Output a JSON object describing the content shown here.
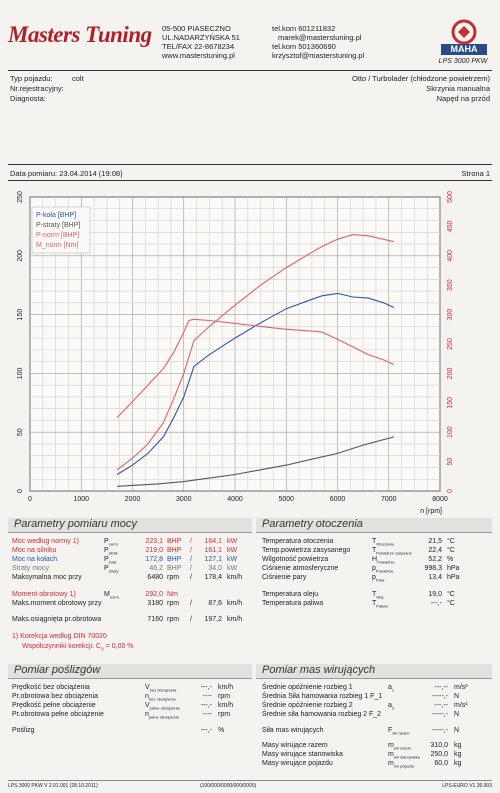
{
  "header": {
    "brand": "Masters Tuning",
    "address": [
      "05-500 PIASECZNO",
      "UL.NADARZYŃSKA 51",
      "TEL/FAX 22-8678234",
      "www.masterstuning.pl"
    ],
    "contacts": [
      "tel.kom 601211832",
      "marek@masterstuning.pl",
      "tel.kom 501360690",
      "krzysztof@masterstuning.pl"
    ],
    "maha_brand": "MAHA",
    "maha_model": "LPS 3000 PKW"
  },
  "vehicle": {
    "type_label": "Typ pojazdu:",
    "type_value": "colt",
    "reg_label": "Nr.rejestracyjny:",
    "reg_value": "",
    "diag_label": "Diagnosta:",
    "diag_value": "",
    "engine": "Otto / Turbolader (chłodzone powietrzem)",
    "gearbox": "Skrzynia manualna",
    "drive": "Napęd na przód"
  },
  "measurement": {
    "date_label": "Data pomiaru: 23.04.2014 (19:08)",
    "page_label": "Strona 1"
  },
  "chart_data": {
    "type": "line",
    "xlabel": "n [rpm]",
    "xlim": [
      0,
      8000
    ],
    "xticks": [
      0,
      1000,
      2000,
      3000,
      4000,
      5000,
      6000,
      7000,
      8000
    ],
    "ylim_left": [
      0,
      250
    ],
    "yticks_left": [
      0,
      50,
      100,
      150,
      200,
      250
    ],
    "ylim_right": [
      0,
      500
    ],
    "yticks_right": [
      0,
      50,
      100,
      150,
      200,
      250,
      300,
      350,
      400,
      450,
      500
    ],
    "grid": true,
    "legend": "top-left",
    "series": [
      {
        "name": "P-koła [BHP]",
        "axis": "left",
        "color": "#2c55a7",
        "x": [
          1700,
          2000,
          2300,
          2600,
          2800,
          3000,
          3200,
          3500,
          4000,
          4500,
          5000,
          5500,
          5700,
          6000,
          6300,
          6600,
          6900,
          7100
        ],
        "y": [
          14,
          22,
          32,
          46,
          62,
          80,
          106,
          116,
          130,
          143,
          155,
          163,
          166,
          168,
          165,
          164,
          160,
          156
        ]
      },
      {
        "name": "P-straty [BHP]",
        "axis": "left",
        "color": "#555555",
        "x": [
          1700,
          2500,
          3000,
          3500,
          4000,
          4500,
          5000,
          5500,
          6000,
          6500,
          7100
        ],
        "y": [
          4,
          6,
          8,
          11,
          14,
          18,
          22,
          27,
          32,
          39,
          46
        ]
      },
      {
        "name": "P-norm [BHP]",
        "axis": "left",
        "color": "#e06070",
        "x": [
          1700,
          2000,
          2300,
          2600,
          2800,
          3000,
          3200,
          3500,
          4000,
          4500,
          5000,
          5500,
          5700,
          6000,
          6300,
          6600,
          6900,
          7100
        ],
        "y": [
          18,
          28,
          40,
          58,
          78,
          100,
          128,
          140,
          158,
          175,
          190,
          203,
          208,
          214,
          218,
          217,
          214,
          212
        ]
      },
      {
        "name": "M_norm [Nm]",
        "axis": "right",
        "color": "#e06070",
        "x": [
          1700,
          2000,
          2300,
          2600,
          2800,
          3000,
          3100,
          3200,
          3500,
          4000,
          4500,
          5000,
          5500,
          5700,
          6000,
          6300,
          6600,
          6900,
          7100
        ],
        "y": [
          125,
          152,
          180,
          208,
          235,
          270,
          290,
          292,
          290,
          285,
          280,
          275,
          272,
          270,
          258,
          245,
          232,
          223,
          215
        ]
      }
    ]
  },
  "power": {
    "title": "Parametry pomiaru mocy",
    "rows": [
      {
        "label": "Moc według normy",
        "note": "1)",
        "sym": "P_norm",
        "v1": "223,1",
        "u1": "BHP",
        "v2": "164,1",
        "u2": "kW",
        "cls": "red"
      },
      {
        "label": "Moc na silniku",
        "note": "",
        "sym": "P_silnik",
        "v1": "219,0",
        "u1": "BHP",
        "v2": "161,1",
        "u2": "kW",
        "cls": "red"
      },
      {
        "label": "Moc na kołach",
        "note": "",
        "sym": "P_koła",
        "v1": "172,8",
        "u1": "BHP",
        "v2": "127,1",
        "u2": "kW",
        "cls": "blue"
      },
      {
        "label": "Straty mocy",
        "note": "",
        "sym": "P_straty",
        "v1": "46,2",
        "u1": "BHP",
        "v2": "34,0",
        "u2": "kW",
        "cls": "gray"
      },
      {
        "label": "Maksymalna moc przy",
        "note": "",
        "sym": "",
        "v1": "6480",
        "u1": "rpm",
        "v2": "178,4",
        "u2": "km/h",
        "cls": ""
      },
      {
        "label": "Moment obrotowy",
        "note": "1)",
        "sym": "M_norm",
        "v1": "292,0",
        "u1": "Nm",
        "v2": "",
        "u2": "",
        "cls": "red"
      },
      {
        "label": "Maks.moment obrotowy przy",
        "note": "",
        "sym": "",
        "v1": "3180",
        "u1": "rpm",
        "v2": "87,6",
        "u2": "km/h",
        "cls": ""
      },
      {
        "label": "Maks.osiągnięta pr.obrotowa",
        "note": "",
        "sym": "",
        "v1": "7160",
        "u1": "rpm",
        "v2": "197,2",
        "u2": "km/h",
        "cls": ""
      }
    ],
    "correction1": "1) Korekcja według DIN 70020",
    "correction2": "Współczynniki korekcji: C",
    "correction_sub": "o",
    "correction_val": "= 0,00 %"
  },
  "environment": {
    "title": "Parametry otoczenia",
    "rows": [
      {
        "label": "Temperatura otoczenia",
        "sym": "T_Otoczenie",
        "val": "21,5",
        "unit": "°C"
      },
      {
        "label": "Temp.powietrza zasysanego",
        "sym": "T_Powietrze zasysane",
        "val": "22,4",
        "unit": "°C"
      },
      {
        "label": "Wilgotność powietrza",
        "sym": "H_Powietrze",
        "val": "52,2",
        "unit": "%"
      },
      {
        "label": "Ciśnienie atmosferyczne",
        "sym": "p_Powietrze",
        "val": "998,3",
        "unit": "hPa"
      },
      {
        "label": "Ciśnienie pary",
        "sym": "p_Para",
        "val": "13,4",
        "unit": "hPa"
      },
      {
        "label": "Temperatura oleju",
        "sym": "T_Olej",
        "val": "19,0",
        "unit": "°C"
      },
      {
        "label": "Temperatura paliwa",
        "sym": "T_Paliwo",
        "val": "---,-",
        "unit": "°C"
      }
    ]
  },
  "slip": {
    "title": "Pomiar poślizgów",
    "rows": [
      {
        "label": "Prędkość bez obciążenia",
        "sym": "V_bez obciążenia",
        "val": "---,-",
        "unit": "km/h"
      },
      {
        "label": "Pr.obrotowa bez obciążenia",
        "sym": "n_bez obciążenia",
        "val": "----",
        "unit": "rpm"
      },
      {
        "label": "Prędkość pełne obciążenie",
        "sym": "V_pełne obciążenie",
        "val": "---,-",
        "unit": "km/h"
      },
      {
        "label": "Pr.obrotowa pełne obciążenie",
        "sym": "n_pełne obciążenie",
        "val": "----",
        "unit": "rpm"
      },
      {
        "label": "Poślizg",
        "sym": "",
        "val": "---,-",
        "unit": "%"
      }
    ]
  },
  "inertia": {
    "title": "Pomiar mas wirujących",
    "rows": [
      {
        "label": "Średnie opóźnienie rozbieg 1",
        "sym": "a_1",
        "val": "---,--",
        "unit": "m/s²"
      },
      {
        "label": "Średnia Siła hamowania rozbieg 1 F_1",
        "sym": "",
        "val": "-----,-",
        "unit": "N"
      },
      {
        "label": "Średnie opóźnienie rozbieg 2",
        "sym": "a_2",
        "val": "---,--",
        "unit": "m/s²"
      },
      {
        "label": "Średnie siła hamowania rozbieg 2 F_2",
        "sym": "",
        "val": "-----,-",
        "unit": "N"
      },
      {
        "label": "Siła mas wirujących",
        "sym": "F_wir razem",
        "val": "-----,-",
        "unit": "N"
      },
      {
        "label": "Masy wirujące razem",
        "sym": "m_wir razem",
        "val": "310,0",
        "unit": "kg"
      },
      {
        "label": "Masy wirujące stanowiska",
        "sym": "m_wir stanowiska",
        "val": "250,0",
        "unit": "kg"
      },
      {
        "label": "Masy wirujące pojazdu",
        "sym": "m_wir pojazdu",
        "val": "60,0",
        "unit": "kg"
      }
    ]
  },
  "footer": {
    "left": "LPS 3000 PKW V 2.01.001 (28.10.2011)",
    "center": "(100/000/0000/000/0000)",
    "right": "LPS-EURO V1.36.003"
  }
}
